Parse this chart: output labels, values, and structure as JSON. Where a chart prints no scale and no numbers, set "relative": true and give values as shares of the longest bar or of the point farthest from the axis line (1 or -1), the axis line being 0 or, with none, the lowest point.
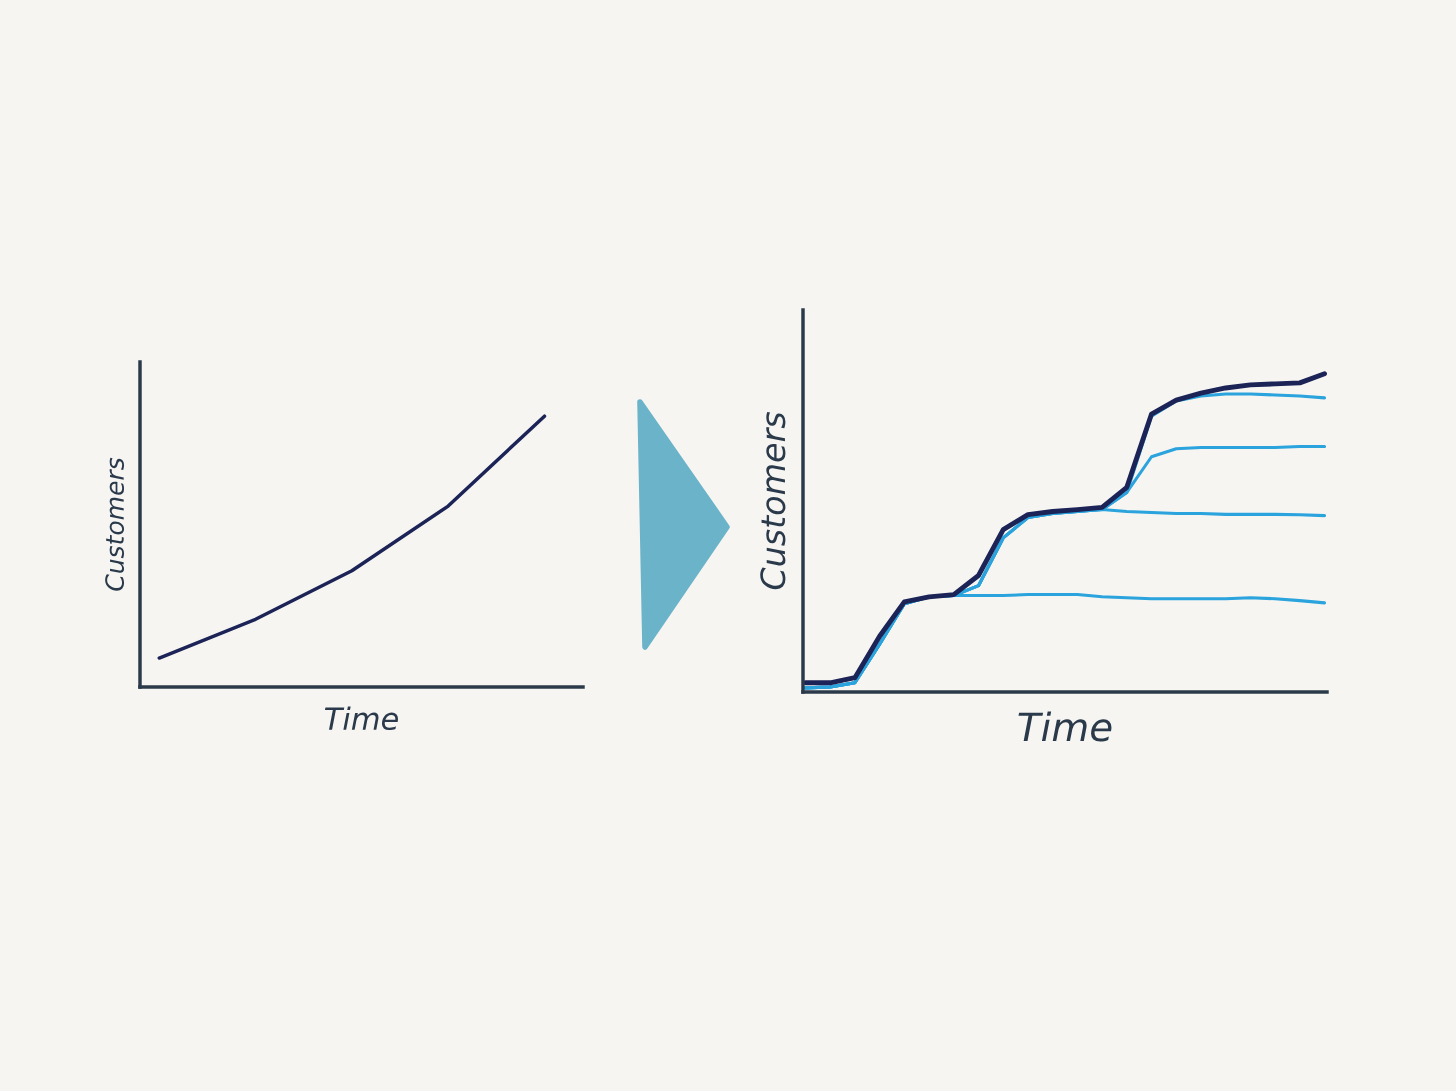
{
  "chart_data": [
    {
      "type": "line",
      "relative": true,
      "xlabel": "Time",
      "ylabel": "Customers",
      "categories": [
        null,
        null,
        null,
        null,
        null
      ],
      "series": [
        {
          "color": "#1c2356",
          "values": [
            0.107,
            0.25,
            0.429,
            0.668,
            1.0
          ]
        }
      ]
    },
    {
      "type": "line",
      "relative": true,
      "xlabel": "Time",
      "ylabel": "Customers",
      "categories": [
        null,
        null,
        null,
        null,
        null,
        null,
        null,
        null,
        null,
        null,
        null,
        null,
        null,
        null,
        null,
        null,
        null,
        null,
        null,
        null,
        null,
        null
      ],
      "series": [
        {
          "color": "#2ba3dd",
          "values": [
            0.013,
            0.016,
            0.029,
            0.15,
            0.277,
            0.299,
            0.303,
            0.303,
            0.303,
            0.306,
            0.306,
            0.306,
            0.299,
            0.296,
            0.293,
            0.293,
            0.293,
            0.293,
            0.296,
            0.293,
            0.287,
            0.28
          ]
        },
        {
          "color": "#2ba3dd",
          "values": [
            0.013,
            0.016,
            0.029,
            0.15,
            0.277,
            0.299,
            0.303,
            0.334,
            0.484,
            0.548,
            0.561,
            0.567,
            0.573,
            0.567,
            0.564,
            0.561,
            0.561,
            0.558,
            0.558,
            0.558,
            0.557,
            0.554
          ]
        },
        {
          "color": "#2ba3dd",
          "values": [
            0.013,
            0.016,
            0.029,
            0.15,
            0.277,
            0.299,
            0.303,
            0.334,
            0.484,
            0.548,
            0.561,
            0.567,
            0.573,
            0.627,
            0.739,
            0.764,
            0.768,
            0.768,
            0.768,
            0.768,
            0.771,
            0.771
          ]
        },
        {
          "color": "#2ba3dd",
          "values": [
            0.013,
            0.016,
            0.029,
            0.15,
            0.277,
            0.299,
            0.303,
            0.334,
            0.484,
            0.548,
            0.561,
            0.567,
            0.573,
            0.627,
            0.866,
            0.914,
            0.93,
            0.936,
            0.936,
            0.933,
            0.93,
            0.924
          ]
        },
        {
          "color": "#1c2356",
          "values": [
            0.029,
            0.029,
            0.045,
            0.175,
            0.283,
            0.299,
            0.306,
            0.366,
            0.51,
            0.557,
            0.567,
            0.573,
            0.58,
            0.643,
            0.873,
            0.917,
            0.939,
            0.955,
            0.965,
            0.968,
            0.971,
            1.0
          ]
        }
      ]
    }
  ]
}
